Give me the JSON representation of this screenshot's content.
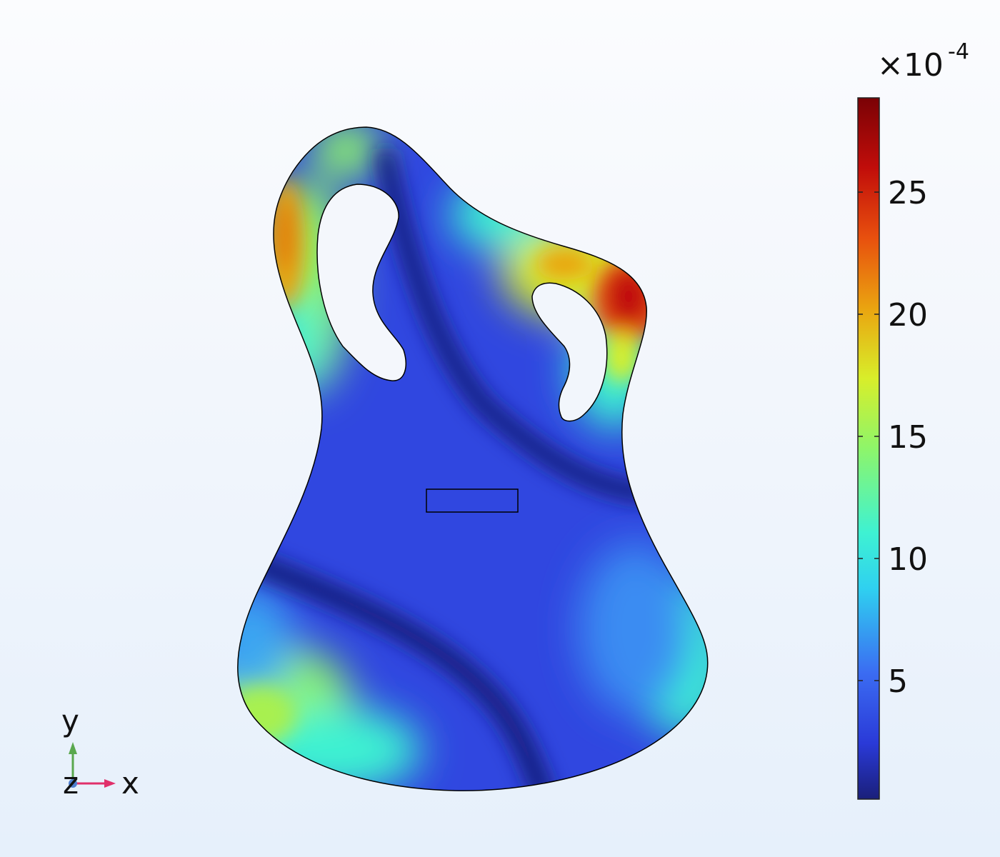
{
  "plot": {
    "colorbar": {
      "multiplier_base": "×10",
      "multiplier_exponent": "-4",
      "ticks": [
        "5",
        "10",
        "15",
        "20",
        "25"
      ],
      "colormap": "rainbow",
      "colors": [
        "#1a1f7a",
        "#2a3ad8",
        "#3b6cf2",
        "#2fd0f0",
        "#3ef2d2",
        "#8ef56a",
        "#d8ee2a",
        "#eaa410",
        "#e8500e",
        "#c10d0a",
        "#7a0205"
      ]
    },
    "axes": {
      "x_label": "x",
      "y_label": "y",
      "z_label": "z",
      "x_color": "#e0306a",
      "y_color": "#5aa84e",
      "z_color": "#4f7fcf"
    }
  }
}
